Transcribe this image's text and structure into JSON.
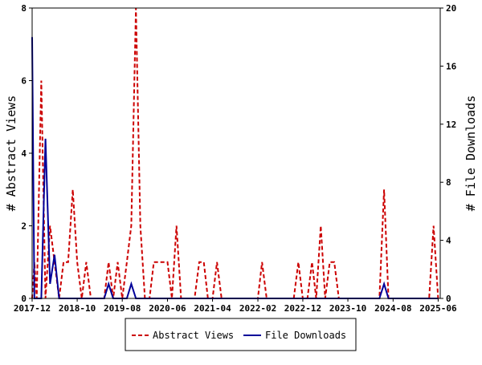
{
  "chart_data": {
    "type": "line",
    "title": "",
    "x_tick_labels": [
      "2017-12",
      "2018-10",
      "2019-08",
      "2020-06",
      "2021-04",
      "2022-02",
      "2022-12",
      "2023-10",
      "2024-08",
      "2025-06"
    ],
    "x_start": "2017-12-01",
    "x_end": "2025-06-15",
    "left_axis": {
      "label": "# Abstract Views",
      "ylim": [
        0,
        8
      ],
      "ticks": [
        0,
        2,
        4,
        6,
        8
      ]
    },
    "right_axis": {
      "label": "# File Downloads",
      "ylim": [
        0,
        20
      ],
      "ticks": [
        0,
        4,
        8,
        12,
        16,
        20
      ]
    },
    "grid": false,
    "legend_position": "bottom",
    "series": [
      {
        "name": "Abstract Views",
        "axis": "left",
        "color": "#cc0000",
        "style": "dashed",
        "points": [
          [
            "2017-12-01",
            0
          ],
          [
            "2017-12-16",
            1
          ],
          [
            "2018-01-01",
            0
          ],
          [
            "2018-02-01",
            6
          ],
          [
            "2018-03-01",
            0
          ],
          [
            "2018-04-01",
            2
          ],
          [
            "2018-05-01",
            1
          ],
          [
            "2018-06-01",
            0
          ],
          [
            "2018-07-01",
            1
          ],
          [
            "2018-08-01",
            1
          ],
          [
            "2018-09-01",
            3
          ],
          [
            "2018-10-01",
            1
          ],
          [
            "2018-11-01",
            0
          ],
          [
            "2018-12-01",
            1
          ],
          [
            "2019-01-01",
            0
          ],
          [
            "2019-02-01",
            0
          ],
          [
            "2019-03-01",
            0
          ],
          [
            "2019-04-01",
            0
          ],
          [
            "2019-05-01",
            1
          ],
          [
            "2019-06-01",
            0
          ],
          [
            "2019-07-01",
            1
          ],
          [
            "2019-08-01",
            0
          ],
          [
            "2019-09-01",
            1
          ],
          [
            "2019-10-01",
            2
          ],
          [
            "2019-11-01",
            8
          ],
          [
            "2019-12-01",
            2
          ],
          [
            "2020-01-01",
            0
          ],
          [
            "2020-02-01",
            0
          ],
          [
            "2020-03-01",
            1
          ],
          [
            "2020-04-01",
            1
          ],
          [
            "2020-05-01",
            1
          ],
          [
            "2020-06-01",
            1
          ],
          [
            "2020-07-01",
            0
          ],
          [
            "2020-08-01",
            2
          ],
          [
            "2020-09-01",
            0
          ],
          [
            "2020-10-01",
            0
          ],
          [
            "2020-11-01",
            0
          ],
          [
            "2020-12-01",
            0
          ],
          [
            "2021-01-01",
            1
          ],
          [
            "2021-02-01",
            1
          ],
          [
            "2021-03-01",
            0
          ],
          [
            "2021-04-01",
            0
          ],
          [
            "2021-05-01",
            1
          ],
          [
            "2021-06-01",
            0
          ],
          [
            "2021-07-01",
            0
          ],
          [
            "2021-08-01",
            0
          ],
          [
            "2021-09-01",
            0
          ],
          [
            "2021-10-01",
            0
          ],
          [
            "2021-11-01",
            0
          ],
          [
            "2021-12-01",
            0
          ],
          [
            "2022-01-01",
            0
          ],
          [
            "2022-02-01",
            0
          ],
          [
            "2022-03-01",
            1
          ],
          [
            "2022-04-01",
            0
          ],
          [
            "2022-05-01",
            0
          ],
          [
            "2022-06-01",
            0
          ],
          [
            "2022-07-01",
            0
          ],
          [
            "2022-08-01",
            0
          ],
          [
            "2022-09-01",
            0
          ],
          [
            "2022-10-01",
            0
          ],
          [
            "2022-11-01",
            1
          ],
          [
            "2022-12-01",
            0
          ],
          [
            "2023-01-01",
            0
          ],
          [
            "2023-02-01",
            1
          ],
          [
            "2023-03-01",
            0
          ],
          [
            "2023-04-01",
            2
          ],
          [
            "2023-05-01",
            0
          ],
          [
            "2023-06-01",
            1
          ],
          [
            "2023-07-01",
            1
          ],
          [
            "2023-08-01",
            0
          ],
          [
            "2023-09-01",
            0
          ],
          [
            "2023-10-01",
            0
          ],
          [
            "2023-11-01",
            0
          ],
          [
            "2023-12-01",
            0
          ],
          [
            "2024-01-01",
            0
          ],
          [
            "2024-02-01",
            0
          ],
          [
            "2024-03-01",
            0
          ],
          [
            "2024-04-01",
            0
          ],
          [
            "2024-05-01",
            0
          ],
          [
            "2024-06-01",
            3
          ],
          [
            "2024-07-01",
            0
          ],
          [
            "2024-08-01",
            0
          ],
          [
            "2024-09-01",
            0
          ],
          [
            "2024-10-01",
            0
          ],
          [
            "2024-11-01",
            0
          ],
          [
            "2024-12-01",
            0
          ],
          [
            "2025-01-01",
            0
          ],
          [
            "2025-02-01",
            0
          ],
          [
            "2025-03-01",
            0
          ],
          [
            "2025-04-01",
            0
          ],
          [
            "2025-05-01",
            2
          ],
          [
            "2025-06-01",
            0
          ]
        ]
      },
      {
        "name": "File Downloads",
        "axis": "right",
        "color": "#000099",
        "style": "solid",
        "points": [
          [
            "2017-12-01",
            18
          ],
          [
            "2017-12-16",
            0
          ],
          [
            "2018-01-01",
            0
          ],
          [
            "2018-02-01",
            0
          ],
          [
            "2018-03-01",
            11
          ],
          [
            "2018-04-01",
            1
          ],
          [
            "2018-05-01",
            3
          ],
          [
            "2018-06-01",
            0
          ],
          [
            "2018-07-01",
            0
          ],
          [
            "2018-08-01",
            0
          ],
          [
            "2018-09-01",
            0
          ],
          [
            "2018-10-01",
            0
          ],
          [
            "2018-11-01",
            0
          ],
          [
            "2018-12-01",
            0
          ],
          [
            "2019-01-01",
            0
          ],
          [
            "2019-02-01",
            0
          ],
          [
            "2019-03-01",
            0
          ],
          [
            "2019-04-01",
            0
          ],
          [
            "2019-05-01",
            1
          ],
          [
            "2019-06-01",
            0
          ],
          [
            "2019-07-01",
            0
          ],
          [
            "2019-08-01",
            0
          ],
          [
            "2019-09-01",
            0
          ],
          [
            "2019-10-01",
            1
          ],
          [
            "2019-11-01",
            0
          ],
          [
            "2019-12-01",
            0
          ],
          [
            "2020-01-01",
            0
          ],
          [
            "2020-02-01",
            0
          ],
          [
            "2020-03-01",
            0
          ],
          [
            "2020-04-01",
            0
          ],
          [
            "2020-05-01",
            0
          ],
          [
            "2020-06-01",
            0
          ],
          [
            "2020-07-01",
            0
          ],
          [
            "2020-08-01",
            0
          ],
          [
            "2020-09-01",
            0
          ],
          [
            "2020-10-01",
            0
          ],
          [
            "2020-11-01",
            0
          ],
          [
            "2020-12-01",
            0
          ],
          [
            "2021-01-01",
            0
          ],
          [
            "2021-02-01",
            0
          ],
          [
            "2021-03-01",
            0
          ],
          [
            "2021-04-01",
            0
          ],
          [
            "2021-05-01",
            0
          ],
          [
            "2021-06-01",
            0
          ],
          [
            "2021-07-01",
            0
          ],
          [
            "2021-08-01",
            0
          ],
          [
            "2021-09-01",
            0
          ],
          [
            "2021-10-01",
            0
          ],
          [
            "2021-11-01",
            0
          ],
          [
            "2021-12-01",
            0
          ],
          [
            "2022-01-01",
            0
          ],
          [
            "2022-02-01",
            0
          ],
          [
            "2022-03-01",
            0
          ],
          [
            "2022-04-01",
            0
          ],
          [
            "2022-05-01",
            0
          ],
          [
            "2022-06-01",
            0
          ],
          [
            "2022-07-01",
            0
          ],
          [
            "2022-08-01",
            0
          ],
          [
            "2022-09-01",
            0
          ],
          [
            "2022-10-01",
            0
          ],
          [
            "2022-11-01",
            0
          ],
          [
            "2022-12-01",
            0
          ],
          [
            "2023-01-01",
            0
          ],
          [
            "2023-02-01",
            0
          ],
          [
            "2023-03-01",
            0
          ],
          [
            "2023-04-01",
            0
          ],
          [
            "2023-05-01",
            0
          ],
          [
            "2023-06-01",
            0
          ],
          [
            "2023-07-01",
            0
          ],
          [
            "2023-08-01",
            0
          ],
          [
            "2023-09-01",
            0
          ],
          [
            "2023-10-01",
            0
          ],
          [
            "2023-11-01",
            0
          ],
          [
            "2023-12-01",
            0
          ],
          [
            "2024-01-01",
            0
          ],
          [
            "2024-02-01",
            0
          ],
          [
            "2024-03-01",
            0
          ],
          [
            "2024-04-01",
            0
          ],
          [
            "2024-05-01",
            0
          ],
          [
            "2024-06-01",
            1
          ],
          [
            "2024-07-01",
            0
          ],
          [
            "2024-08-01",
            0
          ],
          [
            "2024-09-01",
            0
          ],
          [
            "2024-10-01",
            0
          ],
          [
            "2024-11-01",
            0
          ],
          [
            "2024-12-01",
            0
          ],
          [
            "2025-01-01",
            0
          ],
          [
            "2025-02-01",
            0
          ],
          [
            "2025-03-01",
            0
          ],
          [
            "2025-04-01",
            0
          ],
          [
            "2025-05-01",
            0
          ],
          [
            "2025-06-01",
            0
          ]
        ]
      }
    ]
  }
}
